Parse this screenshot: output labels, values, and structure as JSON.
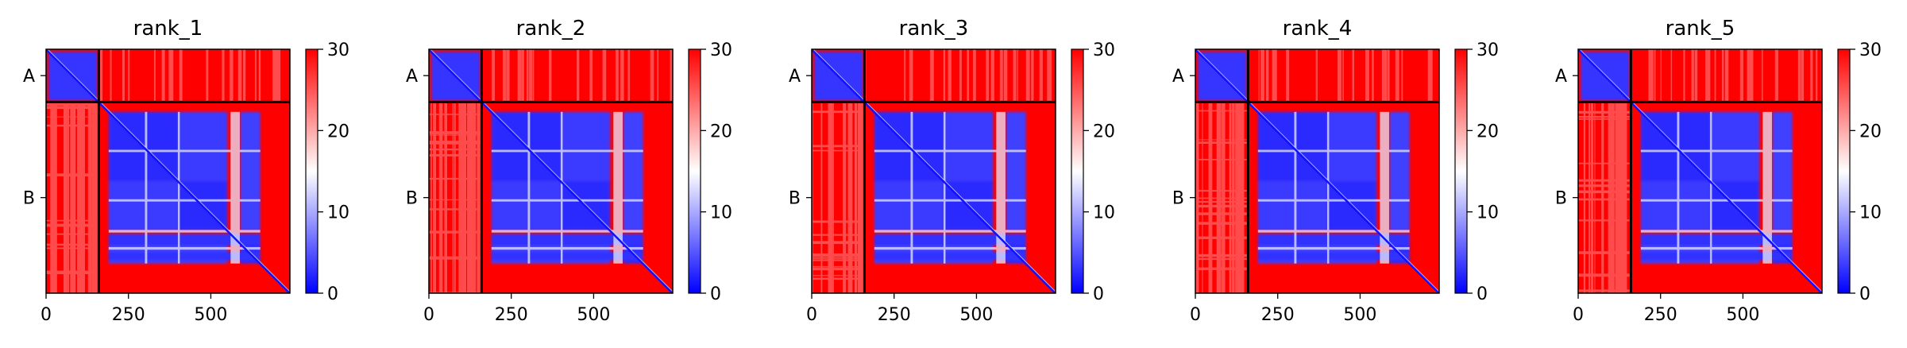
{
  "chart_data": [
    {
      "type": "heatmap",
      "title": "rank_1",
      "chains": [
        "A",
        "B"
      ],
      "chain_boundary": 160,
      "x_ticks": [
        0,
        250,
        500
      ],
      "n_residues": 740,
      "colorbar": {
        "min": 0,
        "max": 30,
        "ticks": [
          0,
          10,
          20,
          30
        ],
        "colors": [
          "#0000ff",
          "#ffffff",
          "#ff0000"
        ]
      }
    },
    {
      "type": "heatmap",
      "title": "rank_2",
      "chains": [
        "A",
        "B"
      ],
      "chain_boundary": 160,
      "x_ticks": [
        0,
        250,
        500
      ],
      "n_residues": 740,
      "colorbar": {
        "min": 0,
        "max": 30,
        "ticks": [
          0,
          10,
          20,
          30
        ],
        "colors": [
          "#0000ff",
          "#ffffff",
          "#ff0000"
        ]
      }
    },
    {
      "type": "heatmap",
      "title": "rank_3",
      "chains": [
        "A",
        "B"
      ],
      "chain_boundary": 160,
      "x_ticks": [
        0,
        250,
        500
      ],
      "n_residues": 740,
      "colorbar": {
        "min": 0,
        "max": 30,
        "ticks": [
          0,
          10,
          20,
          30
        ],
        "colors": [
          "#0000ff",
          "#ffffff",
          "#ff0000"
        ]
      }
    },
    {
      "type": "heatmap",
      "title": "rank_4",
      "chains": [
        "A",
        "B"
      ],
      "chain_boundary": 160,
      "x_ticks": [
        0,
        250,
        500
      ],
      "n_residues": 740,
      "colorbar": {
        "min": 0,
        "max": 30,
        "ticks": [
          0,
          10,
          20,
          30
        ],
        "colors": [
          "#0000ff",
          "#ffffff",
          "#ff0000"
        ]
      }
    },
    {
      "type": "heatmap",
      "title": "rank_5",
      "chains": [
        "A",
        "B"
      ],
      "chain_boundary": 160,
      "x_ticks": [
        0,
        250,
        500
      ],
      "n_residues": 740,
      "colorbar": {
        "min": 0,
        "max": 30,
        "ticks": [
          0,
          10,
          20,
          30
        ],
        "colors": [
          "#0000ff",
          "#ffffff",
          "#ff0000"
        ]
      }
    }
  ]
}
